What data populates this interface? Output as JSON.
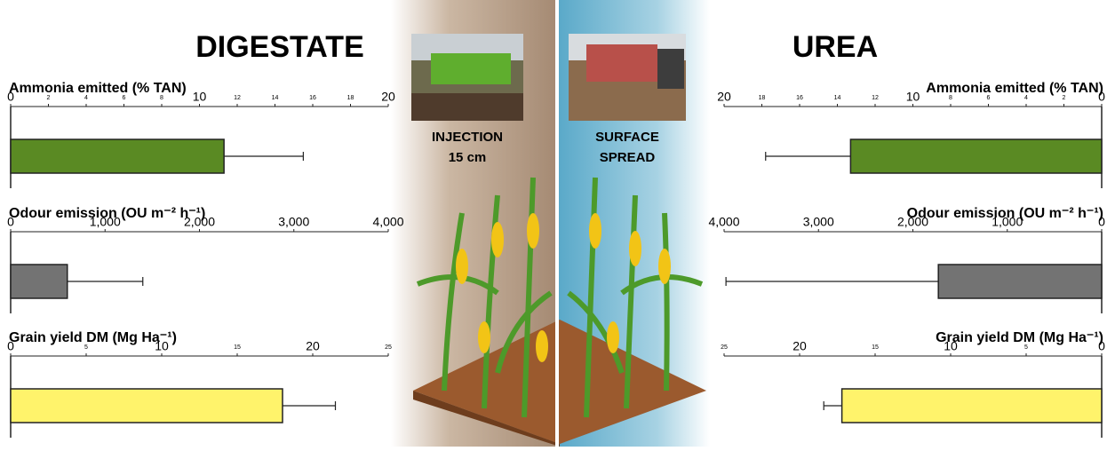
{
  "labels": {
    "left_heading": "DIGESTATE",
    "right_heading": "UREA",
    "left_method": [
      "INJECTION",
      "15 cm"
    ],
    "right_method": [
      "SURFACE",
      "SPREAD"
    ]
  },
  "chart_data": [
    {
      "type": "bar",
      "title": "Ammonia emitted (% TAN)",
      "values": [
        11.3
      ],
      "errors": [
        4.2
      ],
      "color": "#5a8a23",
      "xlim": [
        0,
        20
      ],
      "xticks": [
        0,
        2,
        4,
        6,
        8,
        10,
        12,
        14,
        16,
        18,
        20
      ]
    },
    {
      "type": "bar",
      "title": "Odour emission (OU m⁻² h⁻¹)",
      "values": [
        600
      ],
      "errors": [
        800
      ],
      "color": "#737373",
      "xlim": [
        0,
        4000
      ],
      "xticks": [
        0,
        {
          "value": 1000,
          "label": "1,000"
        },
        {
          "value": 2000,
          "label": "2,000"
        },
        {
          "value": 3000,
          "label": "3,000"
        },
        {
          "value": 4000,
          "label": "4,000"
        }
      ]
    },
    {
      "type": "bar",
      "title": "Grain yield DM (Mg Ha⁻¹)",
      "values": [
        18
      ],
      "errors": [
        3.5
      ],
      "color": "#fff36b",
      "xlim": [
        0,
        25
      ],
      "xticks": [
        0,
        5,
        10,
        15,
        20,
        25
      ]
    },
    {
      "type": "bar",
      "title": "Ammonia emitted (% TAN)",
      "values": [
        13.3
      ],
      "errors": [
        4.5
      ],
      "color": "#5a8a23",
      "xlim": [
        20,
        0
      ],
      "xticks": [
        20,
        18,
        16,
        14,
        12,
        10,
        8,
        6,
        4,
        2,
        0
      ]
    },
    {
      "type": "bar",
      "title": "Odour emission (OU m⁻² h⁻¹)",
      "values": [
        1730
      ],
      "errors": [
        2250
      ],
      "color": "#737373",
      "xlim": [
        4000,
        0
      ],
      "xticks": [
        {
          "value": 4000,
          "label": "4,000"
        },
        {
          "value": 3000,
          "label": "3,000"
        },
        {
          "value": 2000,
          "label": "2,000"
        },
        {
          "value": 1000,
          "label": "1,000"
        },
        0
      ]
    },
    {
      "type": "bar",
      "title": "Grain yield DM (Mg Ha⁻¹)",
      "values": [
        17.2
      ],
      "errors": [
        1.2
      ],
      "color": "#fff36b",
      "xlim": [
        25,
        0
      ],
      "xticks": [
        25,
        20,
        15,
        10,
        5,
        0
      ]
    }
  ]
}
